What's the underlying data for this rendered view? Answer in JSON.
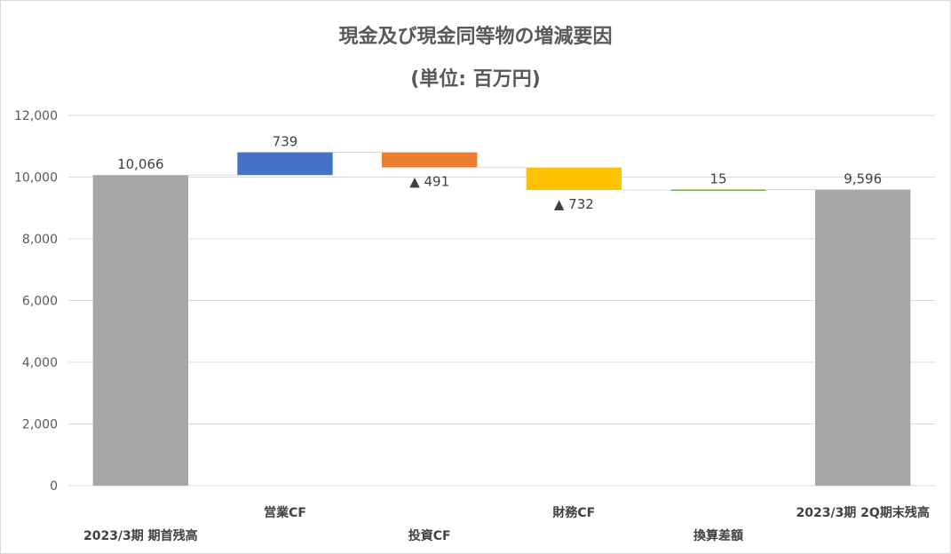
{
  "chart_data": {
    "type": "waterfall",
    "title": "現金及び現金同等物の増減要因",
    "subtitle": "(単位: 百万円)",
    "ylim": [
      0,
      12000
    ],
    "yticks": [
      0,
      2000,
      4000,
      6000,
      8000,
      10000,
      12000
    ],
    "ytick_labels": [
      "0",
      "2,000",
      "4,000",
      "6,000",
      "8,000",
      "10,000",
      "12,000"
    ],
    "grid": true,
    "legend": "none",
    "categories": [
      "2023/3期 期首残高",
      "営業CF",
      "投資CF",
      "財務CF",
      "換算差額",
      "2023/3期 2Q期末残高"
    ],
    "values": [
      10066,
      739,
      -491,
      -732,
      15,
      9596
    ],
    "kinds": [
      "total",
      "delta",
      "delta",
      "delta",
      "delta",
      "total"
    ],
    "data_labels": [
      "10,066",
      "739",
      "▲ 491",
      "▲ 732",
      "15",
      "9,596"
    ],
    "colors": [
      "#a6a6a6",
      "#4472c4",
      "#ed7d31",
      "#ffc000",
      "#70ad47",
      "#a6a6a6"
    ]
  }
}
